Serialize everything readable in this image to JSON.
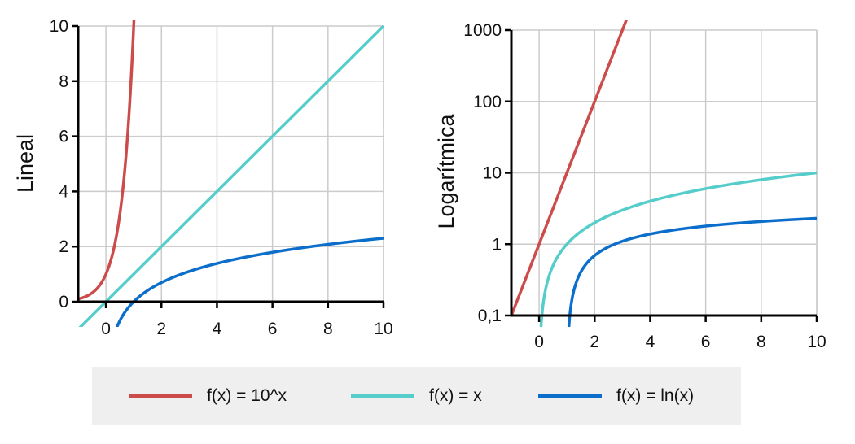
{
  "chart_data": [
    {
      "type": "line",
      "scale": "linear",
      "ylabel": "Lineal",
      "xlim": [
        -1,
        10
      ],
      "ylim": [
        0,
        10
      ],
      "x_ticks": [
        0,
        2,
        4,
        6,
        8,
        10
      ],
      "x_tick_labels": [
        "0",
        "2",
        "4",
        "6",
        "8",
        "10"
      ],
      "y_ticks": [
        0,
        2,
        4,
        6,
        8,
        10
      ],
      "y_tick_labels": [
        "0",
        "2",
        "4",
        "6",
        "8",
        "10"
      ],
      "grid": true
    },
    {
      "type": "line",
      "scale": "log",
      "ylabel": "Logarítmica",
      "xlim": [
        -1,
        10
      ],
      "ylim": [
        0.1,
        1000
      ],
      "x_ticks": [
        0,
        2,
        4,
        6,
        8,
        10
      ],
      "x_tick_labels": [
        "0",
        "2",
        "4",
        "6",
        "8",
        "10"
      ],
      "y_ticks": [
        0.1,
        1,
        10,
        100,
        1000
      ],
      "y_tick_labels": [
        "0,1",
        "1",
        "10",
        "100",
        "1000"
      ],
      "grid": true
    }
  ],
  "series": [
    {
      "name": "exp10",
      "label": "f(x) = 10^x",
      "color": "#cc4b4b",
      "fn": "exp10"
    },
    {
      "name": "identity",
      "label": "f(x) = x",
      "color": "#55cdcb",
      "fn": "identity"
    },
    {
      "name": "ln",
      "label": "f(x) = ln(x)",
      "color": "#0b6ecb",
      "fn": "ln"
    }
  ]
}
